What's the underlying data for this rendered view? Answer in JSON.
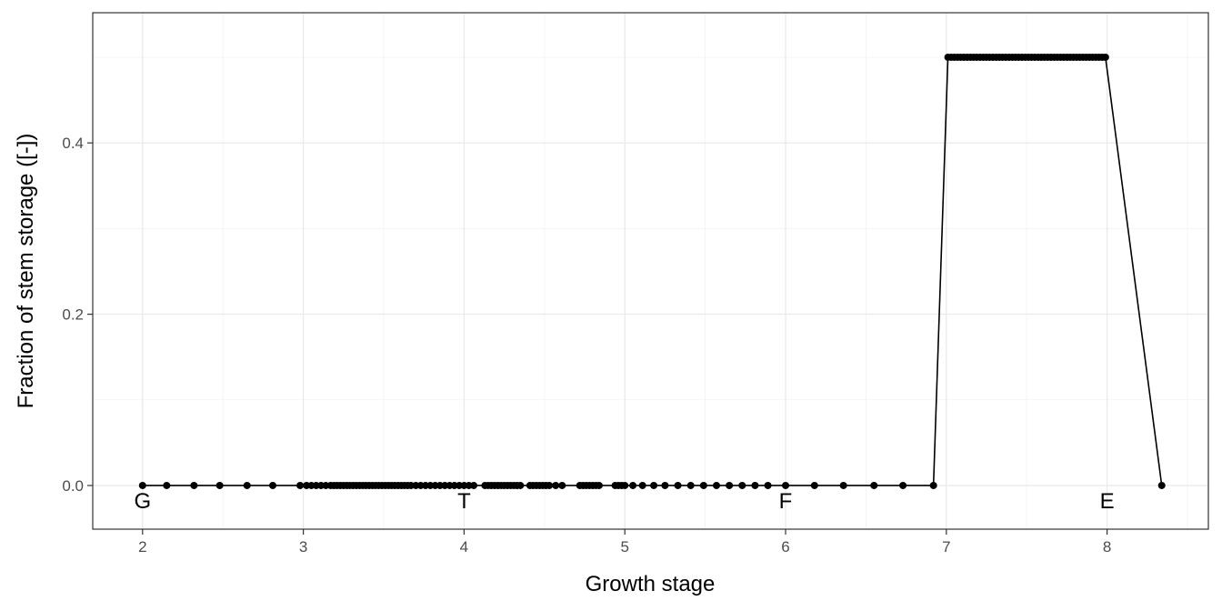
{
  "chart_data": {
    "type": "line",
    "title": "",
    "xlabel": "Growth stage",
    "ylabel": "Fraction of stem storage ([-])",
    "xlim": [
      1.69,
      8.63
    ],
    "ylim": [
      -0.051,
      0.552
    ],
    "xticks": [
      2,
      3,
      4,
      5,
      6,
      7,
      8
    ],
    "yticks": [
      0.0,
      0.2,
      0.4
    ],
    "ytick_labels": [
      "0.0",
      "0.2",
      "0.4"
    ],
    "grid": true,
    "stage_labels": [
      {
        "text": "G",
        "x": 2.0,
        "y": -0.017
      },
      {
        "text": "T",
        "x": 4.0,
        "y": -0.017
      },
      {
        "text": "F",
        "x": 6.0,
        "y": -0.017
      },
      {
        "text": "E",
        "x": 8.0,
        "y": -0.017
      }
    ],
    "series": [
      {
        "color": "#000000",
        "x": [
          2.0,
          2.15,
          2.32,
          2.48,
          2.65,
          2.81,
          2.98,
          3.02,
          3.05,
          3.08,
          3.11,
          3.14,
          3.17,
          3.19,
          3.21,
          3.23,
          3.25,
          3.27,
          3.29,
          3.31,
          3.33,
          3.35,
          3.37,
          3.39,
          3.41,
          3.43,
          3.45,
          3.47,
          3.49,
          3.51,
          3.53,
          3.55,
          3.57,
          3.59,
          3.61,
          3.63,
          3.65,
          3.67,
          3.7,
          3.73,
          3.76,
          3.79,
          3.82,
          3.85,
          3.88,
          3.91,
          3.94,
          3.97,
          4.0,
          4.03,
          4.06,
          4.13,
          4.15,
          4.17,
          4.19,
          4.21,
          4.23,
          4.25,
          4.27,
          4.29,
          4.31,
          4.33,
          4.35,
          4.41,
          4.43,
          4.45,
          4.47,
          4.49,
          4.51,
          4.53,
          4.57,
          4.61,
          4.72,
          4.74,
          4.76,
          4.78,
          4.8,
          4.82,
          4.84,
          4.94,
          4.96,
          4.98,
          5.0,
          5.05,
          5.11,
          5.18,
          5.25,
          5.33,
          5.41,
          5.49,
          5.57,
          5.65,
          5.73,
          5.81,
          5.89,
          6.0,
          6.18,
          6.36,
          6.55,
          6.73,
          6.92,
          7.01,
          7.03,
          7.05,
          7.07,
          7.09,
          7.11,
          7.13,
          7.15,
          7.17,
          7.19,
          7.21,
          7.23,
          7.25,
          7.27,
          7.29,
          7.31,
          7.33,
          7.35,
          7.37,
          7.39,
          7.41,
          7.43,
          7.45,
          7.47,
          7.49,
          7.51,
          7.53,
          7.55,
          7.57,
          7.59,
          7.61,
          7.63,
          7.65,
          7.67,
          7.69,
          7.71,
          7.73,
          7.75,
          7.77,
          7.79,
          7.81,
          7.83,
          7.85,
          7.87,
          7.89,
          7.91,
          7.93,
          7.95,
          7.97,
          7.99,
          8.34
        ],
        "y": [
          0.0,
          0.0,
          0.0,
          0.0,
          0.0,
          0.0,
          0.0,
          0.0,
          0.0,
          0.0,
          0.0,
          0.0,
          0.0,
          0.0,
          0.0,
          0.0,
          0.0,
          0.0,
          0.0,
          0.0,
          0.0,
          0.0,
          0.0,
          0.0,
          0.0,
          0.0,
          0.0,
          0.0,
          0.0,
          0.0,
          0.0,
          0.0,
          0.0,
          0.0,
          0.0,
          0.0,
          0.0,
          0.0,
          0.0,
          0.0,
          0.0,
          0.0,
          0.0,
          0.0,
          0.0,
          0.0,
          0.0,
          0.0,
          0.0,
          0.0,
          0.0,
          0.0,
          0.0,
          0.0,
          0.0,
          0.0,
          0.0,
          0.0,
          0.0,
          0.0,
          0.0,
          0.0,
          0.0,
          0.0,
          0.0,
          0.0,
          0.0,
          0.0,
          0.0,
          0.0,
          0.0,
          0.0,
          0.0,
          0.0,
          0.0,
          0.0,
          0.0,
          0.0,
          0.0,
          0.0,
          0.0,
          0.0,
          0.0,
          0.0,
          0.0,
          0.0,
          0.0,
          0.0,
          0.0,
          0.0,
          0.0,
          0.0,
          0.0,
          0.0,
          0.0,
          0.0,
          0.0,
          0.0,
          0.0,
          0.0,
          0.0,
          0.5,
          0.5,
          0.5,
          0.5,
          0.5,
          0.5,
          0.5,
          0.5,
          0.5,
          0.5,
          0.5,
          0.5,
          0.5,
          0.5,
          0.5,
          0.5,
          0.5,
          0.5,
          0.5,
          0.5,
          0.5,
          0.5,
          0.5,
          0.5,
          0.5,
          0.5,
          0.5,
          0.5,
          0.5,
          0.5,
          0.5,
          0.5,
          0.5,
          0.5,
          0.5,
          0.5,
          0.5,
          0.5,
          0.5,
          0.5,
          0.5,
          0.5,
          0.5,
          0.5,
          0.5,
          0.5,
          0.5,
          0.5,
          0.5,
          0.5,
          0.0
        ]
      }
    ]
  }
}
